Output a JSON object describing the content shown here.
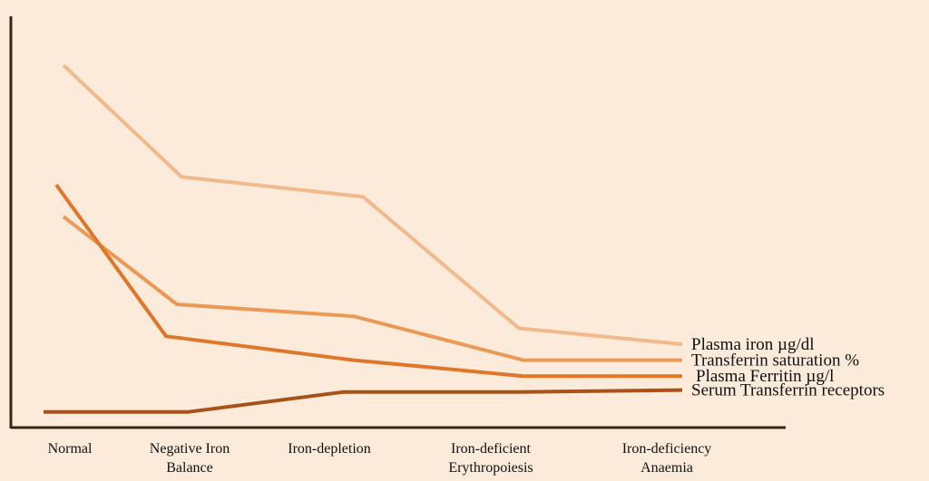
{
  "chart_data": {
    "type": "line",
    "title": "",
    "xlabel": "",
    "ylabel": "",
    "categories": [
      [
        "Normal"
      ],
      [
        "Negative  Iron",
        "Balance"
      ],
      [
        "Iron-depletion"
      ],
      [
        "Iron-deficient",
        "Erythropoiesis"
      ],
      [
        "Iron-deficiency",
        "Anaemia"
      ]
    ],
    "series": [
      {
        "name": "Plasma iron µg/dl",
        "values": [
          90,
          62,
          57,
          24,
          20
        ],
        "color": "#f2b98c"
      },
      {
        "name": "Transferrin saturation %",
        "values": [
          52,
          30,
          27,
          16,
          16
        ],
        "color": "#ec9955"
      },
      {
        "name": "Plasma Ferritin µg/l",
        "values": [
          60,
          22,
          16,
          12,
          12
        ],
        "color": "#e0762a"
      },
      {
        "name": "Serum Transferrin receptors",
        "values": [
          3,
          3,
          8,
          8,
          8.5
        ],
        "color": "#a85219"
      }
    ],
    "ylim": [
      0,
      100
    ],
    "grid": false,
    "legend": "inline-right"
  }
}
